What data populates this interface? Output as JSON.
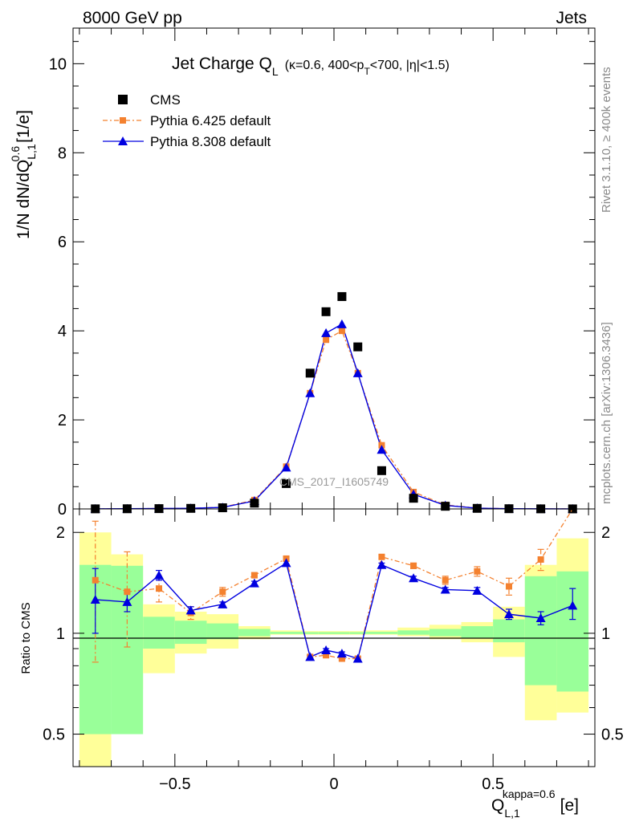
{
  "header": {
    "left": "8000 GeV pp",
    "right": "Jets"
  },
  "side_texts": {
    "rivet": "Rivet 3.1.10, ≥ 400k events",
    "mcplots": "mcplots.cern.ch [arXiv:1306.3436]"
  },
  "watermark": "CMS_2017_I1605749",
  "chart_data": [
    {
      "type": "scatter",
      "panel": "main",
      "title": "Jet Charge Q_L (κ=0.6, 400<p_T<700, |η|<1.5)",
      "title_main": "Jet Charge Q",
      "title_sub_L": "L",
      "title_rest_a": "(κ=0.6, 400<p",
      "title_sub_T": "T",
      "title_rest_b": "<700, |η|<1.5)",
      "ylabel": "1/N dN/dQ_L,1^0.6 [1/e]",
      "ylabel_main": "1/N dN/dQ",
      "ylabel_sub": "L,1",
      "ylabel_sup": "0.6",
      "ylabel_unit": "[1/e]",
      "xlim": [
        -0.82,
        0.82
      ],
      "ylim": [
        0,
        10.8
      ],
      "yticks": [
        0,
        2,
        4,
        6,
        8,
        10
      ],
      "ytick_labels": [
        "0",
        "2",
        "4",
        "6",
        "8",
        "10"
      ],
      "legend_position": "top-left",
      "x": [
        -0.75,
        -0.65,
        -0.55,
        -0.45,
        -0.35,
        -0.25,
        -0.15,
        -0.075,
        -0.025,
        0.025,
        0.075,
        0.15,
        0.25,
        0.35,
        0.45,
        0.55,
        0.65,
        0.75
      ],
      "series": [
        {
          "name": "CMS",
          "marker": "square",
          "color": "#000000",
          "values": [
            0.002,
            0.004,
            0.007,
            0.013,
            0.026,
            0.13,
            0.57,
            3.05,
            4.43,
            4.77,
            3.64,
            0.86,
            0.24,
            0.06,
            0.013,
            0.005,
            0.002,
            0.001
          ]
        },
        {
          "name": "Pythia 6.425 default",
          "marker": "square-small",
          "color": "#f4812f",
          "line": "dash-dot",
          "values": [
            0.003,
            0.005,
            0.009,
            0.015,
            0.038,
            0.2,
            0.95,
            2.6,
            3.8,
            4.0,
            3.05,
            1.43,
            0.38,
            0.09,
            0.02,
            0.007,
            0.003,
            0.002
          ]
        },
        {
          "name": "Pythia 8.308 default",
          "marker": "triangle",
          "color": "#0000e0",
          "line": "solid",
          "values": [
            0.003,
            0.005,
            0.01,
            0.015,
            0.034,
            0.18,
            0.93,
            2.6,
            3.95,
            4.15,
            3.05,
            1.33,
            0.33,
            0.08,
            0.017,
            0.006,
            0.0023,
            0.0013
          ]
        }
      ]
    },
    {
      "type": "scatter",
      "panel": "ratio",
      "ylabel": "Ratio to CMS",
      "xlabel": "Q_L,1^kappa=0.6 [e]",
      "xlabel_main": "Q",
      "xlabel_sub": "L,1",
      "xlabel_sup": "kappa=0.6",
      "xlabel_unit": "[e]",
      "log_y": true,
      "ylim": [
        0.4,
        2.35
      ],
      "yticks": [
        0.5,
        1,
        2
      ],
      "ytick_labels": [
        "0.5",
        "1",
        "2"
      ],
      "xlim": [
        -0.82,
        0.82
      ],
      "xticks": [
        -0.5,
        0,
        0.5
      ],
      "xtick_labels": [
        "−0.5",
        "0",
        "0.5"
      ],
      "bins": [
        -0.8,
        -0.7,
        -0.6,
        -0.5,
        -0.4,
        -0.3,
        -0.2,
        -0.1,
        -0.05,
        0,
        0.05,
        0.1,
        0.2,
        0.3,
        0.4,
        0.5,
        0.6,
        0.7,
        0.8
      ],
      "band_1sigma": [
        [
          0.5,
          1.6
        ],
        [
          0.5,
          1.59
        ],
        [
          0.9,
          1.12
        ],
        [
          0.93,
          1.09
        ],
        [
          0.96,
          1.07
        ],
        [
          0.98,
          1.03
        ],
        [
          0.995,
          1.01
        ],
        [
          0.995,
          1.008
        ],
        [
          0.995,
          1.008
        ],
        [
          0.995,
          1.008
        ],
        [
          0.995,
          1.008
        ],
        [
          0.995,
          1.01
        ],
        [
          0.99,
          1.02
        ],
        [
          0.98,
          1.03
        ],
        [
          0.97,
          1.05
        ],
        [
          0.94,
          1.1
        ],
        [
          0.7,
          1.48
        ],
        [
          0.67,
          1.53
        ]
      ],
      "band_2sigma": [
        [
          0.35,
          2.0
        ],
        [
          0.68,
          1.72
        ],
        [
          0.76,
          1.22
        ],
        [
          0.87,
          1.16
        ],
        [
          0.9,
          1.14
        ],
        [
          0.96,
          1.05
        ],
        [
          0.99,
          1.02
        ],
        [
          0.99,
          1.015
        ],
        [
          0.99,
          1.015
        ],
        [
          0.99,
          1.015
        ],
        [
          0.99,
          1.015
        ],
        [
          0.99,
          1.02
        ],
        [
          0.98,
          1.04
        ],
        [
          0.96,
          1.06
        ],
        [
          0.94,
          1.08
        ],
        [
          0.85,
          1.2
        ],
        [
          0.55,
          1.6
        ],
        [
          0.58,
          1.92
        ]
      ],
      "x": [
        -0.75,
        -0.65,
        -0.55,
        -0.45,
        -0.35,
        -0.25,
        -0.15,
        -0.075,
        -0.025,
        0.025,
        0.075,
        0.15,
        0.25,
        0.35,
        0.45,
        0.55,
        0.65,
        0.75
      ],
      "series": [
        {
          "name": "Pythia 6.425 default",
          "color": "#f4812f",
          "values": [
            1.44,
            1.33,
            1.36,
            1.15,
            1.33,
            1.49,
            1.67,
            0.85,
            0.86,
            0.84,
            0.84,
            1.69,
            1.59,
            1.44,
            1.53,
            1.38,
            1.66,
            2.4
          ],
          "err_low": [
            0.62,
            0.42,
            0.12,
            0.05,
            0.04,
            0.02,
            0.02,
            0.01,
            0.01,
            0.01,
            0.01,
            0.02,
            0.03,
            0.04,
            0.05,
            0.08,
            0.12,
            0.0
          ],
          "err_high": [
            0.72,
            0.42,
            0.12,
            0.05,
            0.04,
            0.02,
            0.02,
            0.01,
            0.01,
            0.01,
            0.01,
            0.02,
            0.03,
            0.04,
            0.05,
            0.08,
            0.12,
            0.0
          ]
        },
        {
          "name": "Pythia 8.308 default",
          "color": "#0000e0",
          "values": [
            1.26,
            1.24,
            1.49,
            1.17,
            1.22,
            1.41,
            1.62,
            0.85,
            0.89,
            0.87,
            0.84,
            1.6,
            1.46,
            1.35,
            1.34,
            1.14,
            1.11,
            1.21
          ],
          "err_low": [
            0.26,
            0.08,
            0.05,
            0.03,
            0.02,
            0.02,
            0.02,
            0.01,
            0.01,
            0.01,
            0.01,
            0.02,
            0.02,
            0.02,
            0.03,
            0.04,
            0.05,
            0.11
          ],
          "err_high": [
            0.3,
            0.08,
            0.05,
            0.03,
            0.02,
            0.02,
            0.02,
            0.01,
            0.01,
            0.01,
            0.01,
            0.02,
            0.02,
            0.02,
            0.03,
            0.04,
            0.05,
            0.15
          ]
        }
      ]
    }
  ]
}
